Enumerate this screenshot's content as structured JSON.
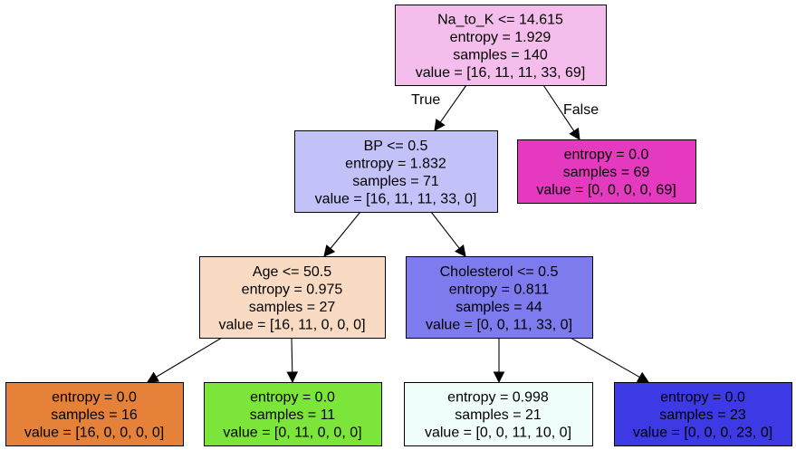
{
  "tree": {
    "nodes": [
      {
        "id": "n0",
        "fill": "#f5bdec",
        "lines": [
          "Na_to_K <= 14.615",
          "entropy = 1.929",
          "samples = 140",
          "value = [16, 11, 11, 33, 69]"
        ]
      },
      {
        "id": "n1",
        "fill": "#c2c1f8",
        "lines": [
          "BP <= 0.5",
          "entropy = 1.832",
          "samples = 71",
          "value = [16, 11, 11, 33, 0]"
        ]
      },
      {
        "id": "n2",
        "fill": "#e539c0",
        "lines": [
          "entropy = 0.0",
          "samples = 69",
          "value = [0, 0, 0, 0, 69]"
        ]
      },
      {
        "id": "n3",
        "fill": "#f8dbc2",
        "lines": [
          "Age <= 50.5",
          "entropy = 0.975",
          "samples = 27",
          "value = [16, 11, 0, 0, 0]"
        ]
      },
      {
        "id": "n4",
        "fill": "#7e7bee",
        "lines": [
          "Cholesterol <= 0.5",
          "entropy = 0.811",
          "samples = 44",
          "value = [0, 0, 11, 33, 0]"
        ]
      },
      {
        "id": "n5",
        "fill": "#e58139",
        "lines": [
          "entropy = 0.0",
          "samples = 16",
          "value = [16, 0, 0, 0, 0]"
        ]
      },
      {
        "id": "n6",
        "fill": "#7be539",
        "lines": [
          "entropy = 0.0",
          "samples = 11",
          "value = [0, 11, 0, 0, 0]"
        ]
      },
      {
        "id": "n7",
        "fill": "#effdfb",
        "lines": [
          "entropy = 0.998",
          "samples = 21",
          "value = [0, 0, 11, 10, 0]"
        ]
      },
      {
        "id": "n8",
        "fill": "#3c39e5",
        "lines": [
          "entropy = 0.0",
          "samples = 23",
          "value = [0, 0, 0, 23, 0]"
        ]
      }
    ],
    "edges": [
      {
        "from": "n0",
        "to": "n1",
        "label": "True"
      },
      {
        "from": "n0",
        "to": "n2",
        "label": "False"
      },
      {
        "from": "n1",
        "to": "n3",
        "label": ""
      },
      {
        "from": "n1",
        "to": "n4",
        "label": ""
      },
      {
        "from": "n3",
        "to": "n5",
        "label": ""
      },
      {
        "from": "n3",
        "to": "n6",
        "label": ""
      },
      {
        "from": "n4",
        "to": "n7",
        "label": ""
      },
      {
        "from": "n4",
        "to": "n8",
        "label": ""
      }
    ]
  }
}
